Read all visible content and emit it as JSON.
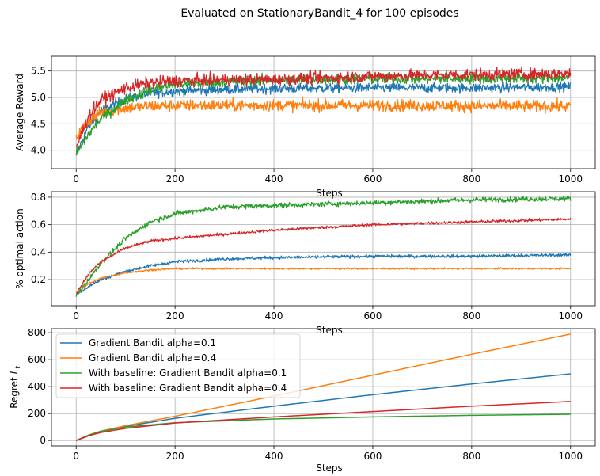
{
  "figure": {
    "title": "Evaluated on StationaryBandit_4 for 100 episodes"
  },
  "colors": {
    "series": [
      "#1f77b4",
      "#ff7f0e",
      "#2ca02c",
      "#d62728"
    ],
    "grid": "#b0b0b0"
  },
  "chart_data": [
    {
      "type": "line",
      "ylabel": "Average Reward",
      "xlabel": "Steps",
      "xlim": [
        -50,
        1050
      ],
      "ylim": [
        3.65,
        5.78
      ],
      "xticks": [
        0,
        200,
        400,
        600,
        800,
        1000
      ],
      "yticks": [
        4.0,
        4.5,
        5.0,
        5.5
      ],
      "ytick_labels": [
        "4.0",
        "4.5",
        "5.0",
        "5.5"
      ],
      "grid": true,
      "noisy": true,
      "noise": [
        0.09,
        0.11,
        0.1,
        0.11
      ],
      "series": [
        {
          "values": [
            [
              0,
              3.92
            ],
            [
              25,
              4.45
            ],
            [
              50,
              4.75
            ],
            [
              100,
              4.97
            ],
            [
              150,
              5.08
            ],
            [
              200,
              5.12
            ],
            [
              300,
              5.15
            ],
            [
              400,
              5.17
            ],
            [
              600,
              5.18
            ],
            [
              800,
              5.18
            ],
            [
              1000,
              5.2
            ]
          ]
        },
        {
          "values": [
            [
              0,
              4.25
            ],
            [
              25,
              4.55
            ],
            [
              50,
              4.72
            ],
            [
              100,
              4.8
            ],
            [
              150,
              4.84
            ],
            [
              200,
              4.85
            ],
            [
              400,
              4.85
            ],
            [
              600,
              4.85
            ],
            [
              800,
              4.84
            ],
            [
              1000,
              4.83
            ]
          ]
        },
        {
          "values": [
            [
              0,
              3.92
            ],
            [
              25,
              4.3
            ],
            [
              50,
              4.6
            ],
            [
              100,
              4.95
            ],
            [
              150,
              5.15
            ],
            [
              200,
              5.25
            ],
            [
              300,
              5.3
            ],
            [
              400,
              5.33
            ],
            [
              600,
              5.35
            ],
            [
              800,
              5.36
            ],
            [
              1000,
              5.37
            ]
          ]
        },
        {
          "values": [
            [
              0,
              4.05
            ],
            [
              25,
              4.65
            ],
            [
              50,
              4.95
            ],
            [
              100,
              5.18
            ],
            [
              150,
              5.28
            ],
            [
              200,
              5.31
            ],
            [
              300,
              5.33
            ],
            [
              400,
              5.34
            ],
            [
              600,
              5.4
            ],
            [
              800,
              5.43
            ],
            [
              1000,
              5.45
            ]
          ]
        }
      ]
    },
    {
      "type": "line",
      "ylabel": "% optimal action",
      "xlabel": "Steps",
      "xlim": [
        -50,
        1050
      ],
      "ylim": [
        0.01,
        0.84
      ],
      "xticks": [
        0,
        200,
        400,
        600,
        800,
        1000
      ],
      "yticks": [
        0.2,
        0.4,
        0.6,
        0.8
      ],
      "ytick_labels": [
        "0.2",
        "0.4",
        "0.6",
        "0.8"
      ],
      "grid": true,
      "noisy": true,
      "noise": [
        0.011,
        0.006,
        0.018,
        0.01
      ],
      "series": [
        {
          "values": [
            [
              0,
              0.09
            ],
            [
              25,
              0.15
            ],
            [
              50,
              0.2
            ],
            [
              100,
              0.26
            ],
            [
              150,
              0.3
            ],
            [
              200,
              0.33
            ],
            [
              300,
              0.35
            ],
            [
              400,
              0.36
            ],
            [
              600,
              0.37
            ],
            [
              800,
              0.37
            ],
            [
              1000,
              0.38
            ]
          ]
        },
        {
          "values": [
            [
              0,
              0.1
            ],
            [
              25,
              0.17
            ],
            [
              50,
              0.21
            ],
            [
              100,
              0.25
            ],
            [
              150,
              0.27
            ],
            [
              200,
              0.28
            ],
            [
              300,
              0.28
            ],
            [
              400,
              0.28
            ],
            [
              600,
              0.28
            ],
            [
              800,
              0.28
            ],
            [
              1000,
              0.28
            ]
          ]
        },
        {
          "values": [
            [
              0,
              0.08
            ],
            [
              25,
              0.2
            ],
            [
              50,
              0.32
            ],
            [
              100,
              0.5
            ],
            [
              150,
              0.62
            ],
            [
              200,
              0.68
            ],
            [
              300,
              0.73
            ],
            [
              400,
              0.74
            ],
            [
              600,
              0.76
            ],
            [
              800,
              0.78
            ],
            [
              1000,
              0.79
            ]
          ]
        },
        {
          "values": [
            [
              0,
              0.1
            ],
            [
              25,
              0.24
            ],
            [
              50,
              0.33
            ],
            [
              100,
              0.43
            ],
            [
              150,
              0.48
            ],
            [
              200,
              0.5
            ],
            [
              300,
              0.53
            ],
            [
              400,
              0.56
            ],
            [
              600,
              0.6
            ],
            [
              800,
              0.62
            ],
            [
              1000,
              0.64
            ]
          ]
        }
      ]
    },
    {
      "type": "line",
      "ylabel": "Regret L_t",
      "xlabel": "Steps",
      "xlim": [
        -50,
        1050
      ],
      "ylim": [
        -40,
        830
      ],
      "xticks": [
        0,
        200,
        400,
        600,
        800,
        1000
      ],
      "yticks": [
        0,
        200,
        400,
        600,
        800
      ],
      "ytick_labels": [
        "0",
        "200",
        "400",
        "600",
        "800"
      ],
      "grid": true,
      "noisy": false,
      "legend": "top-left",
      "series": [
        {
          "name": "Gradient Bandit alpha=0.1",
          "values": [
            [
              0,
              0
            ],
            [
              25,
              40
            ],
            [
              50,
              70
            ],
            [
              100,
              105
            ],
            [
              200,
              165
            ],
            [
              400,
              255
            ],
            [
              600,
              340
            ],
            [
              800,
              420
            ],
            [
              1000,
              495
            ]
          ]
        },
        {
          "name": "Gradient Bandit alpha=0.4",
          "values": [
            [
              0,
              0
            ],
            [
              25,
              40
            ],
            [
              50,
              70
            ],
            [
              100,
              110
            ],
            [
              200,
              180
            ],
            [
              400,
              330
            ],
            [
              600,
              485
            ],
            [
              800,
              640
            ],
            [
              1000,
              790
            ]
          ]
        },
        {
          "name": "With baseline: Gradient Bandit alpha=0.1",
          "values": [
            [
              0,
              0
            ],
            [
              25,
              40
            ],
            [
              50,
              68
            ],
            [
              100,
              100
            ],
            [
              200,
              132
            ],
            [
              400,
              160
            ],
            [
              600,
              175
            ],
            [
              800,
              187
            ],
            [
              1000,
              195
            ]
          ]
        },
        {
          "name": "With baseline: Gradient Bandit alpha=0.4",
          "values": [
            [
              0,
              0
            ],
            [
              25,
              35
            ],
            [
              50,
              60
            ],
            [
              100,
              90
            ],
            [
              200,
              130
            ],
            [
              400,
              175
            ],
            [
              600,
              215
            ],
            [
              800,
              255
            ],
            [
              1000,
              290
            ]
          ]
        }
      ]
    }
  ]
}
